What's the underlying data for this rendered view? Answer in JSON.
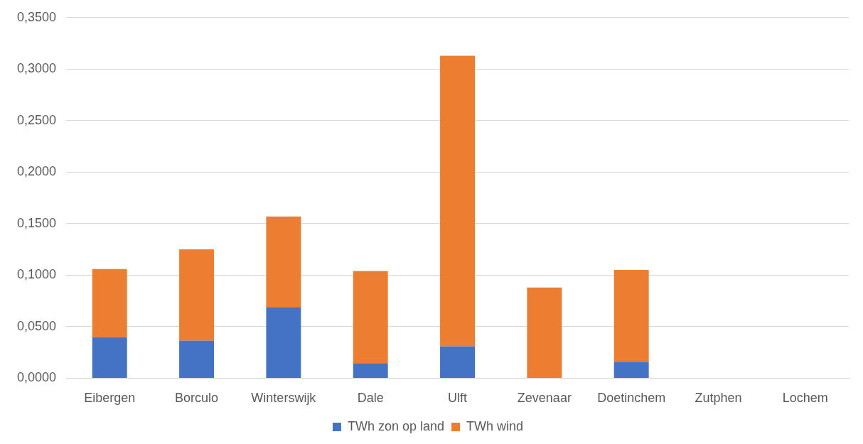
{
  "chart_data": {
    "type": "bar",
    "stacked": true,
    "categories": [
      "Eibergen",
      "Borculo",
      "Winterswijk",
      "Dale",
      "Ulft",
      "Zevenaar",
      "Doetinchem",
      "Zutphen",
      "Lochem"
    ],
    "series": [
      {
        "name": "TWh zon op land",
        "color": "#4472c4",
        "values": [
          0.04,
          0.0365,
          0.069,
          0.0145,
          0.031,
          null,
          0.016,
          null,
          null
        ]
      },
      {
        "name": "TWh wind",
        "color": "#ed7d31",
        "values": [
          0.066,
          0.0885,
          0.088,
          0.0895,
          0.282,
          0.088,
          0.089,
          null,
          null
        ]
      }
    ],
    "ylim": [
      0,
      0.35
    ],
    "yticks": [
      {
        "value": 0,
        "label": "0,0000"
      },
      {
        "value": 0.05,
        "label": "0,0500"
      },
      {
        "value": 0.1,
        "label": "0,1000"
      },
      {
        "value": 0.15,
        "label": "0,1500"
      },
      {
        "value": 0.2,
        "label": "0,2000"
      },
      {
        "value": 0.25,
        "label": "0,2500"
      },
      {
        "value": 0.3,
        "label": "0,3000"
      },
      {
        "value": 0.35,
        "label": "0,3500"
      }
    ],
    "grid": "y",
    "legend": "bottom"
  }
}
